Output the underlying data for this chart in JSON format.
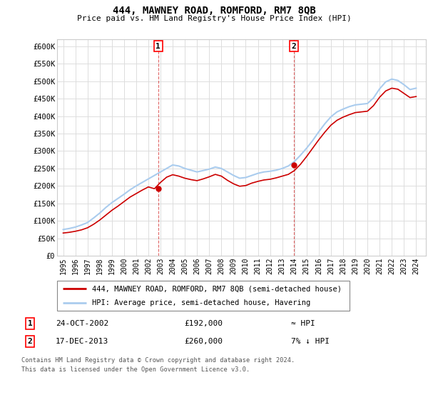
{
  "title": "444, MAWNEY ROAD, ROMFORD, RM7 8QB",
  "subtitle": "Price paid vs. HM Land Registry's House Price Index (HPI)",
  "legend_line1": "444, MAWNEY ROAD, ROMFORD, RM7 8QB (semi-detached house)",
  "legend_line2": "HPI: Average price, semi-detached house, Havering",
  "annotation1_label": "1",
  "annotation1_date": "24-OCT-2002",
  "annotation1_price": "£192,000",
  "annotation1_hpi": "≈ HPI",
  "annotation2_label": "2",
  "annotation2_date": "17-DEC-2013",
  "annotation2_price": "£260,000",
  "annotation2_hpi": "7% ↓ HPI",
  "footnote1": "Contains HM Land Registry data © Crown copyright and database right 2024.",
  "footnote2": "This data is licensed under the Open Government Licence v3.0.",
  "red_line_color": "#cc0000",
  "blue_line_color": "#aaccee",
  "background_color": "#ffffff",
  "grid_color": "#dddddd",
  "ylim": [
    0,
    620000
  ],
  "yticks": [
    0,
    50000,
    100000,
    150000,
    200000,
    250000,
    300000,
    350000,
    400000,
    450000,
    500000,
    550000,
    600000
  ],
  "sale1_year": 2002.81,
  "sale1_price": 192000,
  "sale2_year": 2013.96,
  "sale2_price": 260000,
  "hpi_x": [
    1995.0,
    1995.5,
    1996.0,
    1996.5,
    1997.0,
    1997.5,
    1998.0,
    1998.5,
    1999.0,
    1999.5,
    2000.0,
    2000.5,
    2001.0,
    2001.5,
    2002.0,
    2002.5,
    2003.0,
    2003.5,
    2004.0,
    2004.5,
    2005.0,
    2005.5,
    2006.0,
    2006.5,
    2007.0,
    2007.5,
    2008.0,
    2008.5,
    2009.0,
    2009.5,
    2010.0,
    2010.5,
    2011.0,
    2011.5,
    2012.0,
    2012.5,
    2013.0,
    2013.5,
    2014.0,
    2014.5,
    2015.0,
    2015.5,
    2016.0,
    2016.5,
    2017.0,
    2017.5,
    2018.0,
    2018.5,
    2019.0,
    2019.5,
    2020.0,
    2020.5,
    2021.0,
    2021.5,
    2022.0,
    2022.5,
    2023.0,
    2023.5,
    2024.0
  ],
  "hpi_y": [
    75000,
    78000,
    82000,
    88000,
    95000,
    108000,
    122000,
    138000,
    152000,
    164000,
    176000,
    189000,
    200000,
    210000,
    220000,
    230000,
    240000,
    250000,
    260000,
    257000,
    250000,
    245000,
    240000,
    244000,
    248000,
    254000,
    250000,
    240000,
    230000,
    222000,
    224000,
    230000,
    236000,
    240000,
    242000,
    245000,
    250000,
    257000,
    270000,
    288000,
    308000,
    330000,
    355000,
    378000,
    398000,
    412000,
    420000,
    427000,
    432000,
    434000,
    436000,
    452000,
    478000,
    498000,
    506000,
    502000,
    490000,
    476000,
    480000
  ],
  "red_x": [
    1995.0,
    1995.5,
    1996.0,
    1996.5,
    1997.0,
    1997.5,
    1998.0,
    1998.5,
    1999.0,
    1999.5,
    2000.0,
    2000.5,
    2001.0,
    2001.5,
    2002.0,
    2002.5,
    2003.0,
    2003.5,
    2004.0,
    2004.5,
    2005.0,
    2005.5,
    2006.0,
    2006.5,
    2007.0,
    2007.5,
    2008.0,
    2008.5,
    2009.0,
    2009.5,
    2010.0,
    2010.5,
    2011.0,
    2011.5,
    2012.0,
    2012.5,
    2013.0,
    2013.5,
    2014.0,
    2014.5,
    2015.0,
    2015.5,
    2016.0,
    2016.5,
    2017.0,
    2017.5,
    2018.0,
    2018.5,
    2019.0,
    2019.5,
    2020.0,
    2020.5,
    2021.0,
    2021.5,
    2022.0,
    2022.5,
    2023.0,
    2023.5,
    2024.0
  ],
  "red_y": [
    65000,
    67000,
    70000,
    74000,
    80000,
    90000,
    102000,
    116000,
    130000,
    142000,
    155000,
    168000,
    178000,
    188000,
    197000,
    192000,
    210000,
    225000,
    232000,
    228000,
    222000,
    218000,
    215000,
    220000,
    226000,
    233000,
    228000,
    216000,
    206000,
    199000,
    201000,
    208000,
    213000,
    217000,
    219000,
    223000,
    228000,
    233000,
    244000,
    262000,
    284000,
    308000,
    332000,
    354000,
    374000,
    388000,
    397000,
    404000,
    410000,
    412000,
    414000,
    430000,
    454000,
    472000,
    480000,
    477000,
    465000,
    453000,
    456000
  ],
  "xtick_years": [
    1995,
    1996,
    1997,
    1998,
    1999,
    2000,
    2001,
    2002,
    2003,
    2004,
    2005,
    2006,
    2007,
    2008,
    2009,
    2010,
    2011,
    2012,
    2013,
    2014,
    2015,
    2016,
    2017,
    2018,
    2019,
    2020,
    2021,
    2022,
    2023,
    2024
  ]
}
